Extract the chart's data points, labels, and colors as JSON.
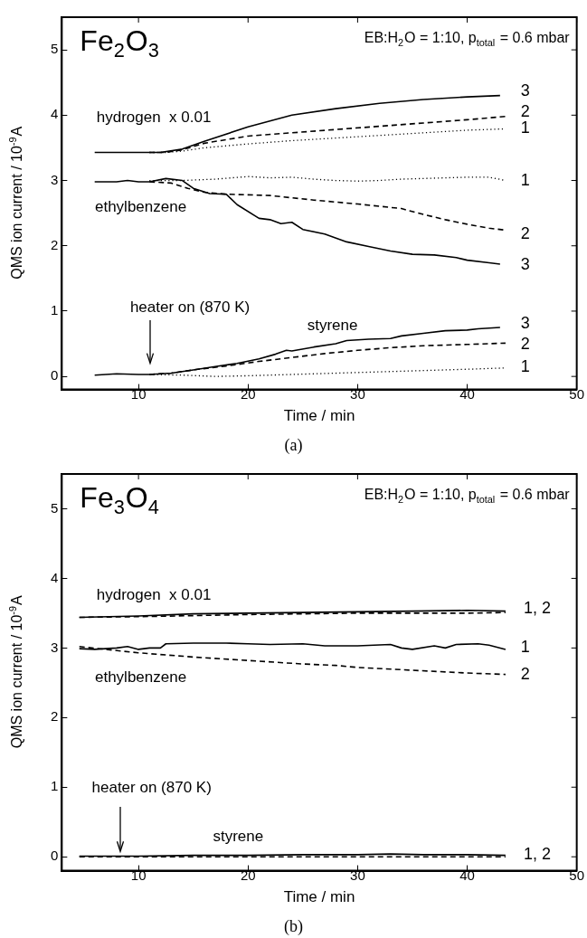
{
  "chart_data": [
    {
      "type": "line",
      "title": "Fe$_{2}$O$_{3}$",
      "subtitle": "EB:H$_{2}$O = 1:10, p$_{total}$ = 0.6 mbar",
      "xlabel": "Time / min",
      "ylabel": "QMS ion current / 10$^{-9}$A",
      "xlim": [
        3,
        50
      ],
      "ylim": [
        -0.2,
        5.5
      ],
      "xticks": [
        10,
        20,
        30,
        40,
        50
      ],
      "yticks": [
        0,
        1,
        2,
        3,
        4,
        5
      ],
      "grid": false,
      "annotations": [
        "(a)",
        "heater on (870 K)",
        "hydrogen  x 0.01",
        "ethylbenzene",
        "styrene",
        "3",
        "2",
        "1",
        "1",
        "2",
        "3",
        "3",
        "2",
        "1"
      ],
      "series": [
        {
          "color": "#000000",
          "line_style": "solid",
          "x": [
            6,
            8,
            10,
            12,
            14,
            16,
            20,
            24,
            28,
            32,
            36,
            40,
            43
          ],
          "values": [
            3.43,
            3.43,
            3.43,
            3.43,
            3.48,
            3.6,
            3.82,
            4.0,
            4.1,
            4.18,
            4.24,
            4.28,
            4.3
          ]
        },
        {
          "color": "#000000",
          "line_style": "dashed",
          "x": [
            11,
            12.5,
            14,
            16,
            20,
            24,
            28,
            32,
            36,
            40,
            43.5
          ],
          "values": [
            3.43,
            3.43,
            3.47,
            3.57,
            3.68,
            3.73,
            3.78,
            3.83,
            3.88,
            3.93,
            3.98
          ]
        },
        {
          "color": "#000000",
          "line_style": "dotted",
          "x": [
            11,
            12.5,
            14,
            16,
            20,
            24,
            28,
            32,
            36,
            40,
            43.5
          ],
          "values": [
            3.43,
            3.43,
            3.45,
            3.5,
            3.56,
            3.61,
            3.65,
            3.69,
            3.73,
            3.77,
            3.79
          ]
        },
        {
          "color": "#000000",
          "line_style": "solid",
          "x": [
            6,
            8,
            9,
            10,
            11,
            12.5,
            14,
            15,
            16.5,
            18,
            19,
            21,
            22,
            23,
            24,
            25,
            27,
            29,
            31,
            33,
            35,
            37,
            39,
            40,
            42,
            43
          ],
          "values": [
            2.98,
            2.98,
            3.0,
            2.98,
            2.98,
            3.03,
            3.0,
            2.88,
            2.8,
            2.79,
            2.63,
            2.42,
            2.4,
            2.34,
            2.36,
            2.25,
            2.18,
            2.06,
            1.99,
            1.92,
            1.87,
            1.86,
            1.82,
            1.78,
            1.74,
            1.72
          ]
        },
        {
          "color": "#000000",
          "line_style": "dashed",
          "x": [
            11,
            13,
            14.5,
            16,
            18,
            22,
            26,
            30,
            34,
            36,
            38,
            40,
            42,
            43.5
          ],
          "values": [
            2.98,
            2.96,
            2.88,
            2.82,
            2.79,
            2.77,
            2.7,
            2.64,
            2.57,
            2.48,
            2.4,
            2.33,
            2.27,
            2.24
          ]
        },
        {
          "color": "#000000",
          "line_style": "dotted",
          "x": [
            11,
            14,
            17,
            20,
            22,
            24,
            26,
            28,
            30,
            32,
            34,
            36,
            38,
            40,
            42,
            43.5
          ],
          "values": [
            3.0,
            3.0,
            3.02,
            3.06,
            3.04,
            3.05,
            3.02,
            3.0,
            2.99,
            3.0,
            3.02,
            3.03,
            3.04,
            3.05,
            3.05,
            3.0
          ]
        },
        {
          "color": "#000000",
          "line_style": "solid",
          "x": [
            6,
            8,
            10,
            11,
            13,
            15,
            17,
            19,
            21,
            22.5,
            23.5,
            24,
            26,
            28,
            29,
            31,
            33,
            34,
            36,
            38,
            40,
            41,
            43
          ],
          "values": [
            0.02,
            0.04,
            0.03,
            0.03,
            0.05,
            0.1,
            0.15,
            0.2,
            0.27,
            0.34,
            0.4,
            0.39,
            0.45,
            0.5,
            0.55,
            0.57,
            0.58,
            0.62,
            0.66,
            0.7,
            0.71,
            0.73,
            0.75
          ]
        },
        {
          "color": "#000000",
          "line_style": "dashed",
          "x": [
            11,
            13,
            15,
            18,
            21,
            24,
            27,
            30,
            33,
            36,
            40,
            43.5
          ],
          "values": [
            0.03,
            0.05,
            0.1,
            0.16,
            0.23,
            0.29,
            0.35,
            0.4,
            0.44,
            0.47,
            0.49,
            0.51
          ]
        },
        {
          "color": "#000000",
          "line_style": "dotted",
          "x": [
            11,
            14,
            17,
            20,
            24,
            28,
            32,
            36,
            40,
            43.5
          ],
          "values": [
            0.03,
            0.02,
            0.0,
            0.01,
            0.03,
            0.05,
            0.07,
            0.09,
            0.11,
            0.13
          ]
        }
      ]
    },
    {
      "type": "line",
      "title": "Fe$_{3}$O$_{4}$",
      "subtitle": "EB:H$_{2}$O = 1:10, p$_{total}$ = 0.6 mbar",
      "xlabel": "Time / min",
      "ylabel": "QMS ion current / 10$^{-9}$A",
      "xlim": [
        3,
        50
      ],
      "ylim": [
        -0.2,
        5.5
      ],
      "xticks": [
        10,
        20,
        30,
        40,
        50
      ],
      "yticks": [
        0,
        1,
        2,
        3,
        4,
        5
      ],
      "grid": false,
      "annotations": [
        "(b)",
        "heater on (870 K)",
        "hydrogen  x 0.01",
        "ethylbenzene",
        "styrene",
        "1, 2",
        "1, 2",
        "1",
        "2"
      ],
      "series": [
        {
          "color": "#000000",
          "line_style": "solid",
          "x": [
            4.6,
            10,
            15,
            20,
            25,
            30,
            35,
            40,
            43.5
          ],
          "values": [
            3.44,
            3.46,
            3.49,
            3.5,
            3.51,
            3.52,
            3.53,
            3.54,
            3.53
          ]
        },
        {
          "color": "#000000",
          "line_style": "dashed",
          "x": [
            4.6,
            10,
            20,
            30,
            40,
            43.5
          ],
          "values": [
            3.44,
            3.45,
            3.48,
            3.5,
            3.5,
            3.51
          ]
        },
        {
          "color": "#000000",
          "line_style": "solid",
          "x": [
            4.6,
            6,
            8,
            9,
            10,
            11,
            12,
            12.5,
            15,
            18,
            20,
            22,
            25,
            27,
            30,
            33,
            34,
            35,
            37,
            38,
            39,
            41,
            42,
            43.5
          ],
          "values": [
            2.99,
            2.98,
            3.0,
            3.02,
            2.98,
            3.0,
            3.0,
            3.06,
            3.07,
            3.07,
            3.06,
            3.05,
            3.06,
            3.03,
            3.03,
            3.05,
            3.0,
            2.98,
            3.03,
            3.0,
            3.05,
            3.06,
            3.04,
            2.98
          ]
        },
        {
          "color": "#000000",
          "line_style": "dashed",
          "x": [
            4.6,
            10,
            15,
            20,
            25,
            28,
            30,
            35,
            40,
            43.5
          ],
          "values": [
            3.02,
            2.93,
            2.87,
            2.82,
            2.77,
            2.75,
            2.72,
            2.68,
            2.64,
            2.62
          ]
        },
        {
          "color": "#000000",
          "line_style": "solid",
          "x": [
            4.6,
            10,
            15,
            20,
            25,
            30,
            33,
            36,
            40,
            43.5
          ],
          "values": [
            0.01,
            0.01,
            0.02,
            0.02,
            0.03,
            0.03,
            0.04,
            0.03,
            0.03,
            0.02
          ]
        },
        {
          "color": "#000000",
          "line_style": "dashed",
          "x": [
            4.6,
            20,
            30,
            43.5
          ],
          "values": [
            0.0,
            0.0,
            0.0,
            0.0
          ]
        }
      ]
    }
  ]
}
